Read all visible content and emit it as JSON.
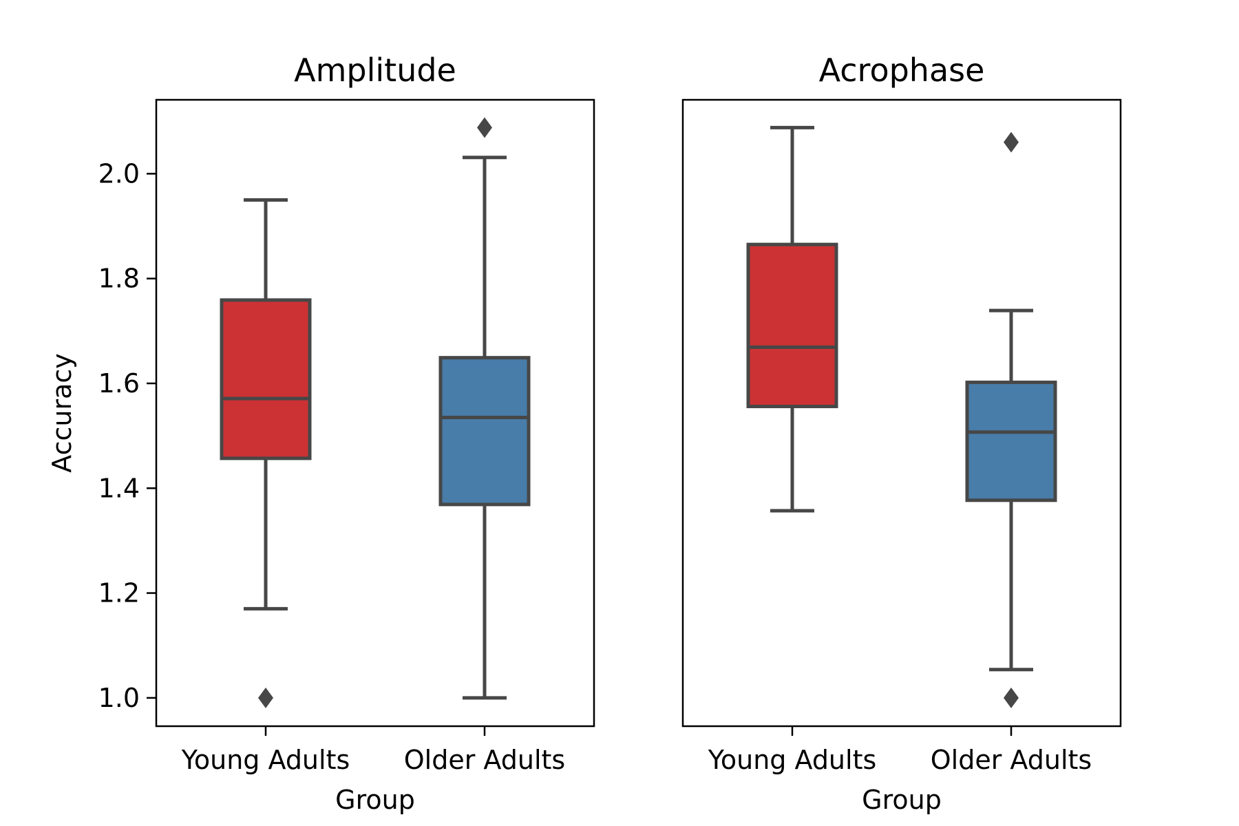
{
  "chart_data": {
    "type": "boxplot",
    "ylabel": "Accuracy",
    "ylim": [
      0.946,
      2.141
    ],
    "yticks": [
      1.0,
      1.2,
      1.4,
      1.6,
      1.8,
      2.0
    ],
    "ytick_labels": [
      "1.0",
      "1.2",
      "1.4",
      "1.6",
      "1.8",
      "2.0"
    ],
    "shared_y": true,
    "colors": {
      "Young Adults": "#cc3234",
      "Older Adults": "#487ca9",
      "line": "#474747"
    },
    "panels": [
      {
        "title": "Amplitude",
        "xlabel": "Group",
        "categories": [
          "Young Adults",
          "Older Adults"
        ],
        "boxes": [
          {
            "category": "Young Adults",
            "whisker_low": 1.17,
            "q1": 1.457,
            "median": 1.571,
            "q3": 1.759,
            "whisker_high": 1.95,
            "outliers": [
              1.0
            ]
          },
          {
            "category": "Older Adults",
            "whisker_low": 1.0,
            "q1": 1.369,
            "median": 1.535,
            "q3": 1.649,
            "whisker_high": 2.031,
            "outliers": [
              2.088
            ]
          }
        ]
      },
      {
        "title": "Acrophase",
        "xlabel": "Group",
        "categories": [
          "Young Adults",
          "Older Adults"
        ],
        "boxes": [
          {
            "category": "Young Adults",
            "whisker_low": 1.357,
            "q1": 1.556,
            "median": 1.669,
            "q3": 1.865,
            "whisker_high": 2.088,
            "outliers": []
          },
          {
            "category": "Older Adults",
            "whisker_low": 1.054,
            "q1": 1.377,
            "median": 1.507,
            "q3": 1.602,
            "whisker_high": 1.739,
            "outliers": [
              2.06,
              1.0
            ]
          }
        ]
      }
    ]
  }
}
